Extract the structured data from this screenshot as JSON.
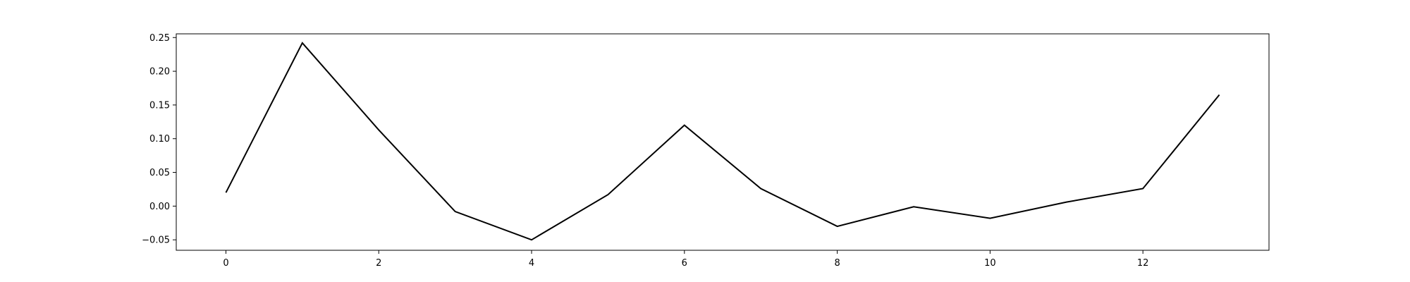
{
  "chart_data": {
    "type": "line",
    "title": "",
    "xlabel": "",
    "ylabel": "",
    "grid": false,
    "xlim": [
      -0.65,
      13.65
    ],
    "ylim": [
      -0.0655,
      0.2555
    ],
    "x_ticks": [
      0,
      2,
      4,
      6,
      8,
      10,
      12
    ],
    "y_ticks": [
      -0.05,
      0.0,
      0.05,
      0.1,
      0.15,
      0.2,
      0.25
    ],
    "x_tick_labels": [
      "0",
      "2",
      "4",
      "6",
      "8",
      "10",
      "12"
    ],
    "y_tick_labels": [
      "−0.05",
      "0.00",
      "0.05",
      "0.10",
      "0.15",
      "0.20",
      "0.25"
    ],
    "series": [
      {
        "color": "#000000",
        "x": [
          0,
          1,
          2,
          3,
          4,
          5,
          6,
          7,
          8,
          9,
          10,
          11,
          12,
          13
        ],
        "values": [
          0.02,
          0.242,
          0.113,
          -0.008,
          -0.05,
          0.017,
          0.12,
          0.026,
          -0.03,
          -0.001,
          -0.018,
          0.006,
          0.026,
          0.165
        ]
      }
    ]
  }
}
